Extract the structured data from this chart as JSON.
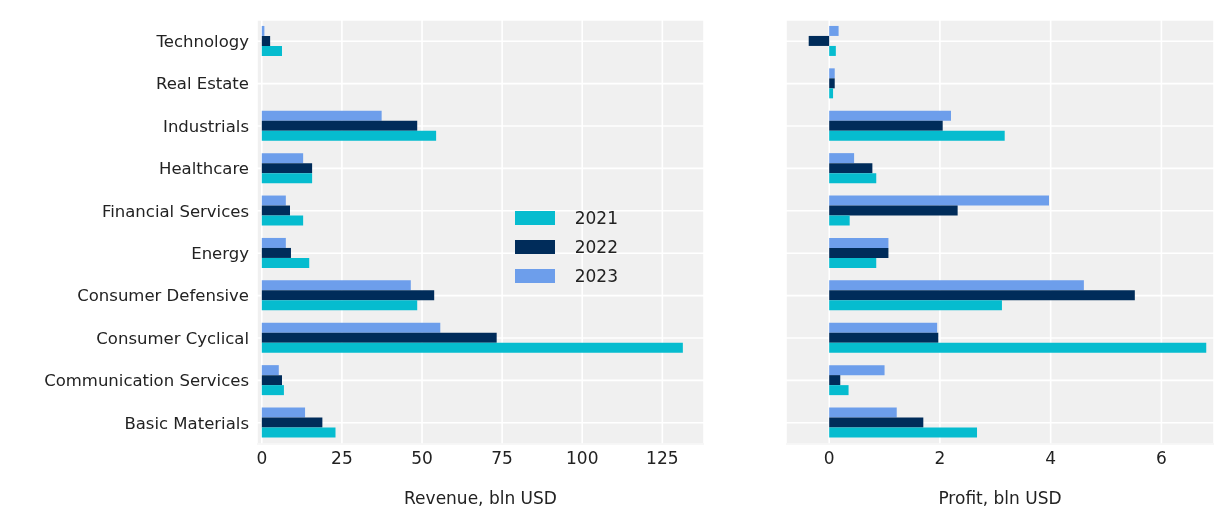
{
  "chart_data": [
    {
      "type": "bar",
      "orientation": "horizontal",
      "categories": [
        "Technology",
        "Real Estate",
        "Industrials",
        "Healthcare",
        "Financial Services",
        "Energy",
        "Consumer Defensive",
        "Consumer Cyclical",
        "Communication Services",
        "Basic Materials"
      ],
      "series": [
        {
          "name": "2021",
          "color": "#06bccf",
          "values": [
            6.3,
            0,
            54.4,
            15.7,
            12.9,
            14.8,
            48.5,
            131.4,
            6.9,
            23
          ]
        },
        {
          "name": "2022",
          "color": "#002c5a",
          "values": [
            2.6,
            0,
            48.5,
            15.7,
            8.8,
            9.1,
            53.8,
            73.3,
            6.3,
            18.9
          ]
        },
        {
          "name": "2023",
          "color": "#6d9eeb",
          "values": [
            0.8,
            0,
            37.4,
            12.9,
            7.5,
            7.5,
            46.5,
            55.7,
            5.3,
            13.5
          ]
        }
      ],
      "xlim": [
        -1.5,
        138
      ],
      "xticks": [
        0,
        25,
        50,
        75,
        100,
        125
      ],
      "xlabel": "Revenue, bln USD",
      "grid": true,
      "legend": "right"
    },
    {
      "type": "bar",
      "orientation": "horizontal",
      "categories": [
        null,
        null,
        null,
        null,
        null,
        null,
        null,
        null,
        null,
        null
      ],
      "series": [
        {
          "color": "#06bccf",
          "values": [
            0.12,
            0.07,
            3.17,
            0.85,
            0.37,
            0.85,
            3.12,
            6.81,
            0.35,
            2.67
          ]
        },
        {
          "color": "#002c5a",
          "values": [
            -0.37,
            0.1,
            2.05,
            0.78,
            2.32,
            1.07,
            5.52,
            1.97,
            0.2,
            1.7
          ]
        },
        {
          "color": "#6d9eeb",
          "values": [
            0.17,
            0.1,
            2.2,
            0.45,
            3.97,
            1.07,
            4.6,
            1.95,
            1.0,
            1.22
          ]
        }
      ],
      "xlim": [
        -0.78,
        6.95
      ],
      "xticks": [
        0,
        2,
        4,
        6
      ],
      "xlabel": "Profit, bln USD",
      "grid": true,
      "tick_labels": "x"
    }
  ]
}
